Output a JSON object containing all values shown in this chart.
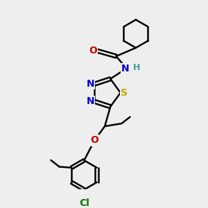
{
  "background_color": "#eeeeee",
  "bond_color": "#000000",
  "bond_width": 1.8,
  "atom_colors": {
    "C": "#000000",
    "N": "#0000cc",
    "O": "#cc0000",
    "S": "#bbaa00",
    "Cl": "#007700",
    "H": "#4a9a9a"
  },
  "font_size": 10
}
